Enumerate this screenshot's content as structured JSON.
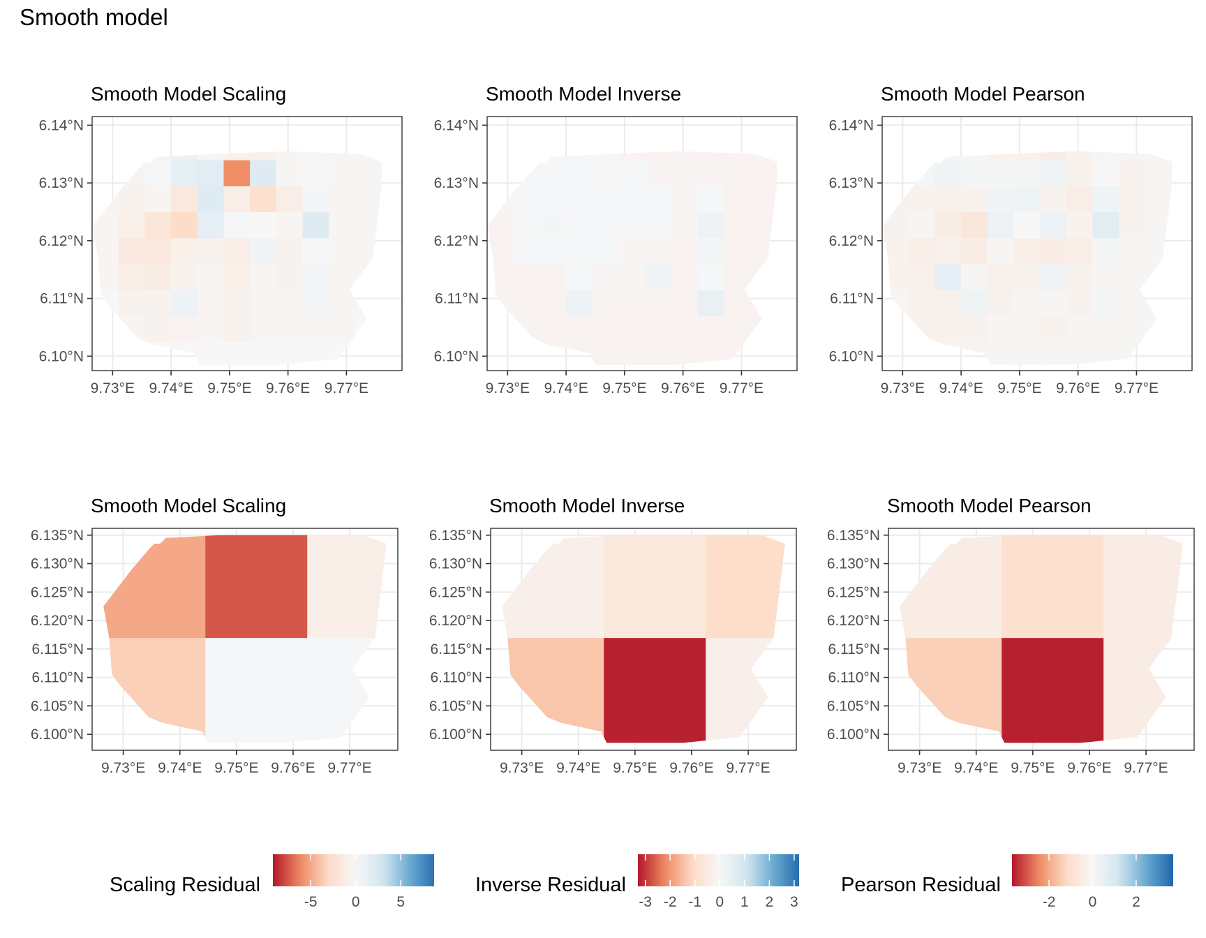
{
  "title": "Smooth model",
  "colors": {
    "neg": "#b2182b",
    "negmid": "#ef8a62",
    "neglight": "#fddbc7",
    "zero": "#f7f7f7",
    "poslight": "#d1e5f0",
    "posmid": "#67a9cf",
    "pos": "#2166ac"
  },
  "chart_data": [
    {
      "type": "heatmap",
      "title": "Smooth Model Scaling",
      "fill_key": "scaling",
      "xticks": [
        "9.73°E",
        "9.74°E",
        "9.75°E",
        "9.76°E",
        "9.77°E"
      ],
      "xtick_values": [
        9.73,
        9.74,
        9.75,
        9.76,
        9.77
      ],
      "yticks": [
        "6.10°N",
        "6.11°N",
        "6.12°N",
        "6.13°N",
        "6.14°N"
      ],
      "ytick_values": [
        6.1,
        6.11,
        6.12,
        6.13,
        6.14
      ],
      "xlim": [
        9.7265,
        9.7795
      ],
      "ylim": [
        6.0975,
        6.1415
      ],
      "x_breaks": [
        9.7265,
        9.731,
        9.7355,
        9.74,
        9.7445,
        9.749,
        9.7535,
        9.758,
        9.7625,
        9.767,
        9.7715,
        9.776
      ],
      "y_breaks": [
        6.098,
        6.1025,
        6.107,
        6.1115,
        6.116,
        6.1205,
        6.125,
        6.1295,
        6.134,
        6.1385
      ],
      "cells": [
        [
          0,
          0,
          0,
          -0.3,
          -0.3,
          -0.3,
          -0.3,
          -0.2,
          -0.2,
          0
        ],
        [
          0,
          -0.3,
          -0.5,
          -1.0,
          -1.5,
          -0.8,
          -0.5,
          -0.4,
          -0.3,
          -0.2
        ],
        [
          0,
          -0.5,
          -0.6,
          -1.2,
          -1.6,
          -2.0,
          -0.3,
          0.2,
          -0.4,
          -0.3
        ],
        [
          0,
          -0.4,
          0.8,
          -0.6,
          -0.8,
          -3.0,
          -1.6,
          1.5,
          1.0,
          0.5
        ],
        [
          0,
          -0.3,
          -0.4,
          -0.2,
          -0.5,
          1.5,
          2.0,
          1.8,
          0.3,
          -0.2
        ],
        [
          0,
          -0.5,
          -0.5,
          -0.8,
          -1.0,
          0.2,
          -1.0,
          -6.0,
          -0.8,
          -1.0
        ],
        [
          0,
          -0.2,
          -0.2,
          -0.3,
          0.5,
          0.0,
          -2.5,
          2.0,
          -0.8,
          -0.2
        ],
        [
          0,
          -0.2,
          -0.3,
          -0.6,
          -0.5,
          -0.3,
          -1.0,
          -0.2,
          -0.2,
          -0.1
        ],
        [
          0,
          -0.2,
          0.3,
          0.3,
          0.0,
          2.0,
          0.3,
          0.0,
          -0.1,
          -0.1
        ],
        [
          0,
          -0.2,
          -0.3,
          -0.3,
          -0.3,
          -0.3,
          -0.3,
          -0.2,
          -0.2,
          -0.2
        ],
        [
          0,
          0,
          -0.2,
          -0.2,
          -0.2,
          -0.2,
          -0.2,
          -0.2,
          -0.2,
          -0.1
        ]
      ]
    },
    {
      "type": "heatmap",
      "title": "Smooth Model Inverse",
      "fill_key": "inverse",
      "xticks": [
        "9.73°E",
        "9.74°E",
        "9.75°E",
        "9.76°E",
        "9.77°E"
      ],
      "xtick_values": [
        9.73,
        9.74,
        9.75,
        9.76,
        9.77
      ],
      "yticks": [
        "6.10°N",
        "6.11°N",
        "6.12°N",
        "6.13°N",
        "6.14°N"
      ],
      "ytick_values": [
        6.1,
        6.11,
        6.12,
        6.13,
        6.14
      ],
      "xlim": [
        9.7265,
        9.7795
      ],
      "ylim": [
        6.0975,
        6.1415
      ],
      "x_breaks": [
        9.7265,
        9.731,
        9.7355,
        9.74,
        9.7445,
        9.749,
        9.7535,
        9.758,
        9.7625,
        9.767,
        9.7715,
        9.776
      ],
      "y_breaks": [
        6.098,
        6.1025,
        6.107,
        6.1115,
        6.116,
        6.1205,
        6.125,
        6.1295,
        6.134,
        6.1385
      ],
      "cells": [
        [
          -0.15,
          -0.15,
          -0.15,
          -0.15,
          -0.15,
          -0.15,
          -0.15,
          -0.1,
          -0.1,
          -0.1
        ],
        [
          -0.15,
          -0.15,
          -0.15,
          -0.15,
          0.05,
          0.05,
          0.05,
          0.05,
          0.05,
          0.05
        ],
        [
          -0.15,
          -0.15,
          -0.15,
          -0.15,
          0.05,
          0.1,
          0.05,
          0.05,
          0.05,
          -0.05
        ],
        [
          -0.15,
          -0.15,
          0.3,
          0.05,
          0.05,
          0.05,
          0.05,
          0.05,
          0.05,
          -0.2
        ],
        [
          -0.15,
          -0.15,
          -0.15,
          -0.1,
          0.05,
          0.05,
          0.05,
          0.0,
          0.05,
          -0.1
        ],
        [
          -0.15,
          -0.15,
          -0.15,
          -0.1,
          -0.1,
          0.05,
          0.05,
          0.05,
          -0.15,
          -0.1
        ],
        [
          -0.15,
          -0.15,
          -0.15,
          0.2,
          -0.1,
          0.05,
          0.05,
          -0.1,
          -0.15,
          -0.1
        ],
        [
          -0.15,
          -0.15,
          -0.15,
          -0.15,
          -0.15,
          -0.1,
          -0.1,
          -0.1,
          -0.1,
          -0.1
        ],
        [
          -0.15,
          -0.15,
          0.4,
          0.05,
          0.1,
          0.3,
          0.05,
          -0.1,
          -0.15,
          -0.1
        ],
        [
          -0.15,
          -0.15,
          -0.15,
          -0.15,
          -0.15,
          -0.15,
          -0.15,
          -0.15,
          -0.15,
          -0.1
        ],
        [
          -0.15,
          -0.15,
          -0.15,
          -0.15,
          -0.15,
          -0.15,
          -0.15,
          -0.15,
          -0.15,
          -0.1
        ]
      ]
    },
    {
      "type": "heatmap",
      "title": "Smooth Model Pearson",
      "fill_key": "pearson",
      "xticks": [
        "9.73°E",
        "9.74°E",
        "9.75°E",
        "9.76°E",
        "9.77°E"
      ],
      "xtick_values": [
        9.73,
        9.74,
        9.75,
        9.76,
        9.77
      ],
      "yticks": [
        "6.10°N",
        "6.11°N",
        "6.12°N",
        "6.13°N",
        "6.14°N"
      ],
      "ytick_values": [
        6.1,
        6.11,
        6.12,
        6.13,
        6.14
      ],
      "xlim": [
        9.7265,
        9.7795
      ],
      "ylim": [
        6.0975,
        6.1415
      ],
      "x_breaks": [
        9.7265,
        9.731,
        9.7355,
        9.74,
        9.7445,
        9.749,
        9.7535,
        9.758,
        9.7625,
        9.767,
        9.7715,
        9.776
      ],
      "y_breaks": [
        6.098,
        6.1025,
        6.107,
        6.1115,
        6.116,
        6.1205,
        6.125,
        6.1295,
        6.134,
        6.1385
      ],
      "cells": [
        [
          -0.1,
          -0.1,
          -0.1,
          -0.2,
          -0.2,
          -0.2,
          -0.2,
          -0.1,
          -0.1,
          -0.1
        ],
        [
          -0.1,
          -0.2,
          -0.3,
          -0.3,
          -0.4,
          -0.1,
          -0.2,
          0.1,
          -0.1,
          -0.1
        ],
        [
          -0.1,
          -0.2,
          -0.3,
          0.6,
          -0.3,
          -0.5,
          -0.3,
          0.3,
          -0.1,
          -0.1
        ],
        [
          -0.1,
          -0.2,
          0.3,
          -0.1,
          -0.5,
          -0.7,
          -0.2,
          0.1,
          0.1,
          -0.1
        ],
        [
          -0.1,
          -0.1,
          -0.2,
          -0.3,
          -0.1,
          0.4,
          0.2,
          0.1,
          -0.2,
          -0.1
        ],
        [
          -0.1,
          -0.1,
          -0.1,
          -0.2,
          -0.4,
          0.0,
          0.3,
          0.1,
          -0.3,
          -0.3
        ],
        [
          -0.1,
          -0.2,
          -0.1,
          0.3,
          -0.5,
          0.4,
          -0.2,
          0.3,
          -0.5,
          -0.2
        ],
        [
          -0.1,
          -0.1,
          -0.2,
          -0.2,
          -0.4,
          -0.2,
          -0.4,
          -0.2,
          -0.2,
          -0.2
        ],
        [
          -0.1,
          -0.1,
          0.1,
          -0.1,
          0.1,
          0.7,
          0.3,
          0.0,
          -0.1,
          -0.1
        ],
        [
          -0.1,
          -0.1,
          -0.1,
          -0.1,
          -0.1,
          -0.2,
          -0.2,
          -0.2,
          -0.1,
          -0.1
        ],
        [
          -0.1,
          -0.1,
          -0.1,
          -0.1,
          -0.1,
          -0.1,
          -0.1,
          -0.1,
          -0.1,
          -0.1
        ]
      ]
    },
    {
      "type": "heatmap",
      "title": "Smooth Model Scaling",
      "fill_key": "scaling",
      "xticks": [
        "9.73°E",
        "9.74°E",
        "9.75°E",
        "9.76°E",
        "9.77°E"
      ],
      "xtick_values": [
        9.73,
        9.74,
        9.75,
        9.76,
        9.77
      ],
      "yticks": [
        "6.100°N",
        "6.105°N",
        "6.110°N",
        "6.115°N",
        "6.120°N",
        "6.125°N",
        "6.130°N",
        "6.135°N"
      ],
      "ytick_values": [
        6.1,
        6.105,
        6.11,
        6.115,
        6.12,
        6.125,
        6.13,
        6.135
      ],
      "xlim": [
        9.7245,
        9.7785
      ],
      "ylim": [
        6.0972,
        6.1362
      ],
      "x_breaks": [
        9.7265,
        9.7445,
        9.7625,
        9.7765
      ],
      "y_breaks": [
        6.0985,
        6.117,
        6.135
      ],
      "cells": [
        [
          -3.5,
          -5.0
        ],
        [
          0.2,
          -7.5
        ],
        [
          0.2,
          -1.0
        ]
      ]
    },
    {
      "type": "heatmap",
      "title": "Smooth Model Inverse",
      "fill_key": "inverse",
      "xticks": [
        "9.73°E",
        "9.74°E",
        "9.75°E",
        "9.76°E",
        "9.77°E"
      ],
      "xtick_values": [
        9.73,
        9.74,
        9.75,
        9.76,
        9.77
      ],
      "yticks": [
        "6.100°N",
        "6.105°N",
        "6.110°N",
        "6.115°N",
        "6.120°N",
        "6.125°N",
        "6.130°N",
        "6.135°N"
      ],
      "ytick_values": [
        6.1,
        6.105,
        6.11,
        6.115,
        6.12,
        6.125,
        6.13,
        6.135
      ],
      "xlim": [
        9.7245,
        9.7785
      ],
      "ylim": [
        6.0972,
        6.1362
      ],
      "x_breaks": [
        9.7265,
        9.7445,
        9.7625,
        9.7765
      ],
      "y_breaks": [
        6.0985,
        6.117,
        6.135
      ],
      "cells": [
        [
          -1.4,
          -0.3
        ],
        [
          -3.2,
          -0.6
        ],
        [
          -0.3,
          -1.0
        ]
      ]
    },
    {
      "type": "heatmap",
      "title": "Smooth Model Pearson",
      "fill_key": "pearson",
      "xticks": [
        "9.73°E",
        "9.74°E",
        "9.75°E",
        "9.76°E",
        "9.77°E"
      ],
      "xtick_values": [
        9.73,
        9.74,
        9.75,
        9.76,
        9.77
      ],
      "yticks": [
        "6.100°N",
        "6.105°N",
        "6.110°N",
        "6.115°N",
        "6.120°N",
        "6.125°N",
        "6.130°N",
        "6.135°N"
      ],
      "ytick_values": [
        6.1,
        6.105,
        6.11,
        6.115,
        6.12,
        6.125,
        6.13,
        6.135
      ],
      "xlim": [
        9.7245,
        9.7785
      ],
      "ylim": [
        6.0972,
        6.1362
      ],
      "x_breaks": [
        9.7265,
        9.7445,
        9.7625,
        9.7765
      ],
      "y_breaks": [
        6.0985,
        6.117,
        6.135
      ],
      "cells": [
        [
          -1.4,
          -0.5
        ],
        [
          -3.6,
          -1.0
        ],
        [
          -0.5,
          -0.5
        ]
      ]
    }
  ],
  "boundary": [
    [
      9.7365,
      6.1335
    ],
    [
      9.7375,
      6.1345
    ],
    [
      9.747,
      6.135
    ],
    [
      9.76,
      6.1355
    ],
    [
      9.7725,
      6.135
    ],
    [
      9.7765,
      6.1335
    ],
    [
      9.7745,
      6.117
    ],
    [
      9.7705,
      6.1115
    ],
    [
      9.7735,
      6.1065
    ],
    [
      9.7685,
      6.0995
    ],
    [
      9.7585,
      6.0985
    ],
    [
      9.745,
      6.0985
    ],
    [
      9.744,
      6.1005
    ],
    [
      9.737,
      6.102
    ],
    [
      9.7345,
      6.103
    ],
    [
      9.7295,
      6.1085
    ],
    [
      9.728,
      6.1105
    ],
    [
      9.7275,
      6.117
    ],
    [
      9.7265,
      6.1225
    ],
    [
      9.7315,
      6.129
    ],
    [
      9.7345,
      6.1325
    ],
    [
      9.7355,
      6.1335
    ]
  ],
  "legends": [
    {
      "key": "scaling",
      "title": "Scaling Residual",
      "limits": [
        -9.2,
        8.7
      ],
      "tick_values": [
        -5,
        0,
        5
      ],
      "tick_labels": [
        "-5",
        "0",
        "5"
      ]
    },
    {
      "key": "inverse",
      "title": "Inverse Residual",
      "limits": [
        -3.3,
        3.2
      ],
      "tick_values": [
        -3,
        -2,
        -1,
        0,
        1,
        2,
        3
      ],
      "tick_labels": [
        "-3",
        "-2",
        "-1",
        "0",
        "1",
        "2",
        "3"
      ]
    },
    {
      "key": "pearson",
      "title": "Pearson Residual",
      "limits": [
        -3.7,
        3.7
      ],
      "tick_values": [
        -2,
        0,
        2
      ],
      "tick_labels": [
        "-2",
        "0",
        "2"
      ]
    }
  ]
}
